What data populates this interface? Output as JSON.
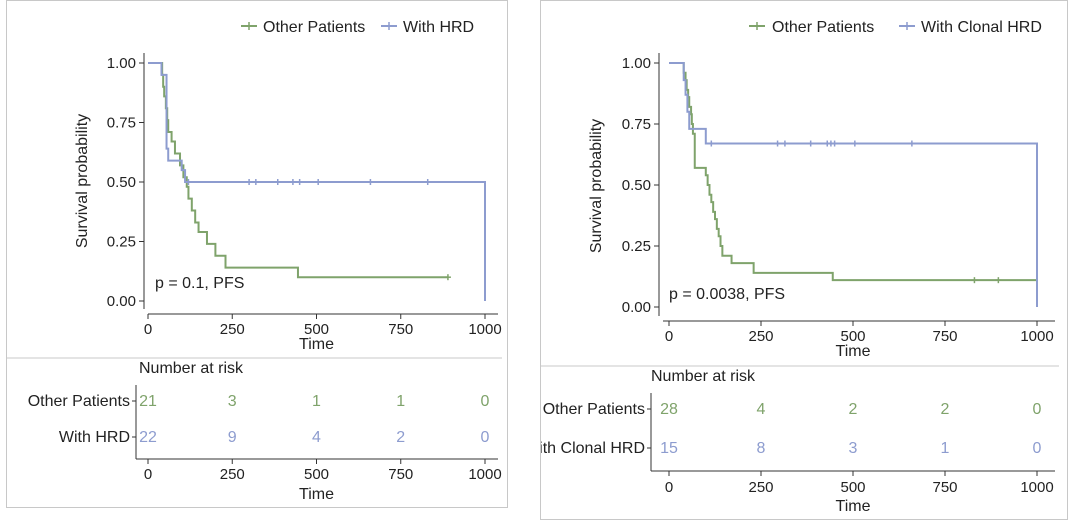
{
  "chart_data": [
    {
      "type": "line",
      "legend_placement": "top-right",
      "annotation": "p = 0.1, PFS",
      "xlabel": "Time",
      "ylabel": "Survival probability",
      "xlim": [
        0,
        1000
      ],
      "ylim": [
        0,
        1
      ],
      "x_ticks": [
        "0",
        "250",
        "500",
        "750",
        "1000"
      ],
      "y_ticks": [
        "0.00",
        "0.25",
        "0.50",
        "0.75",
        "1.00"
      ],
      "series": [
        {
          "name": "Other Patients",
          "color": "#7fa36b",
          "x": [
            0,
            40,
            42,
            45,
            48,
            53,
            57,
            60,
            70,
            80,
            95,
            105,
            115,
            120,
            130,
            140,
            150,
            175,
            200,
            215,
            230,
            240,
            260,
            435,
            445,
            890
          ],
          "y": [
            1.0,
            1.0,
            0.95,
            0.9,
            0.86,
            0.81,
            0.76,
            0.71,
            0.67,
            0.62,
            0.57,
            0.52,
            0.48,
            0.43,
            0.38,
            0.33,
            0.29,
            0.24,
            0.19,
            0.19,
            0.14,
            0.14,
            0.14,
            0.14,
            0.1,
            0.1
          ],
          "censor_x": [
            890
          ]
        },
        {
          "name": "With HRD",
          "color": "#8d9ccf",
          "x": [
            0,
            35,
            40,
            55,
            60,
            100,
            110,
            120,
            300,
            310,
            380,
            430,
            445,
            500,
            655,
            830,
            1000,
            1000
          ],
          "y": [
            1.0,
            1.0,
            0.95,
            0.64,
            0.59,
            0.55,
            0.5,
            0.5,
            0.5,
            0.5,
            0.5,
            0.5,
            0.5,
            0.5,
            0.5,
            0.5,
            0.5,
            0.0
          ],
          "censor_x": [
            120,
            300,
            320,
            385,
            430,
            450,
            505,
            660,
            830
          ]
        }
      ],
      "risk_table": {
        "title": "Number at risk",
        "xlabel": "Time",
        "rows": [
          {
            "name": "Other Patients",
            "values": [
              "21",
              "3",
              "1",
              "1",
              "0"
            ]
          },
          {
            "name": "With HRD",
            "values": [
              "22",
              "9",
              "4",
              "2",
              "0"
            ]
          }
        ]
      }
    },
    {
      "type": "line",
      "legend_placement": "top-right",
      "annotation": "p = 0.0038, PFS",
      "xlabel": "Time",
      "ylabel": "Survival probability",
      "xlim": [
        0,
        1000
      ],
      "ylim": [
        0,
        1
      ],
      "x_ticks": [
        "0",
        "250",
        "500",
        "750",
        "1000"
      ],
      "y_ticks": [
        "0.00",
        "0.25",
        "0.50",
        "0.75",
        "1.00"
      ],
      "series": [
        {
          "name": "Other Patients",
          "color": "#7fa36b",
          "x": [
            0,
            35,
            40,
            45,
            48,
            52,
            55,
            60,
            62,
            65,
            70,
            100,
            105,
            110,
            115,
            120,
            125,
            130,
            135,
            140,
            145,
            150,
            170,
            190,
            210,
            230,
            250,
            440,
            445,
            1000
          ],
          "y": [
            1.0,
            1.0,
            0.96,
            0.93,
            0.89,
            0.86,
            0.82,
            0.79,
            0.75,
            0.71,
            0.57,
            0.54,
            0.5,
            0.46,
            0.43,
            0.39,
            0.36,
            0.32,
            0.29,
            0.25,
            0.21,
            0.21,
            0.18,
            0.18,
            0.18,
            0.14,
            0.14,
            0.14,
            0.11,
            0.11
          ],
          "censor_x": [
            830,
            895
          ]
        },
        {
          "name": "With Clonal HRD",
          "color": "#8d9ccf",
          "x": [
            0,
            35,
            40,
            45,
            50,
            55,
            100,
            1000,
            1000
          ],
          "y": [
            1.0,
            1.0,
            0.93,
            0.87,
            0.8,
            0.73,
            0.67,
            0.67,
            0.0
          ],
          "censor_x": [
            115,
            295,
            315,
            385,
            430,
            440,
            450,
            505,
            660
          ]
        }
      ],
      "risk_table": {
        "title": "Number at risk",
        "xlabel": "Time",
        "rows": [
          {
            "name": "Other Patients",
            "values": [
              "28",
              "4",
              "2",
              "2",
              "0"
            ]
          },
          {
            "name": "With Clonal HRD",
            "values": [
              "15",
              "8",
              "3",
              "1",
              "0"
            ]
          }
        ]
      }
    }
  ]
}
